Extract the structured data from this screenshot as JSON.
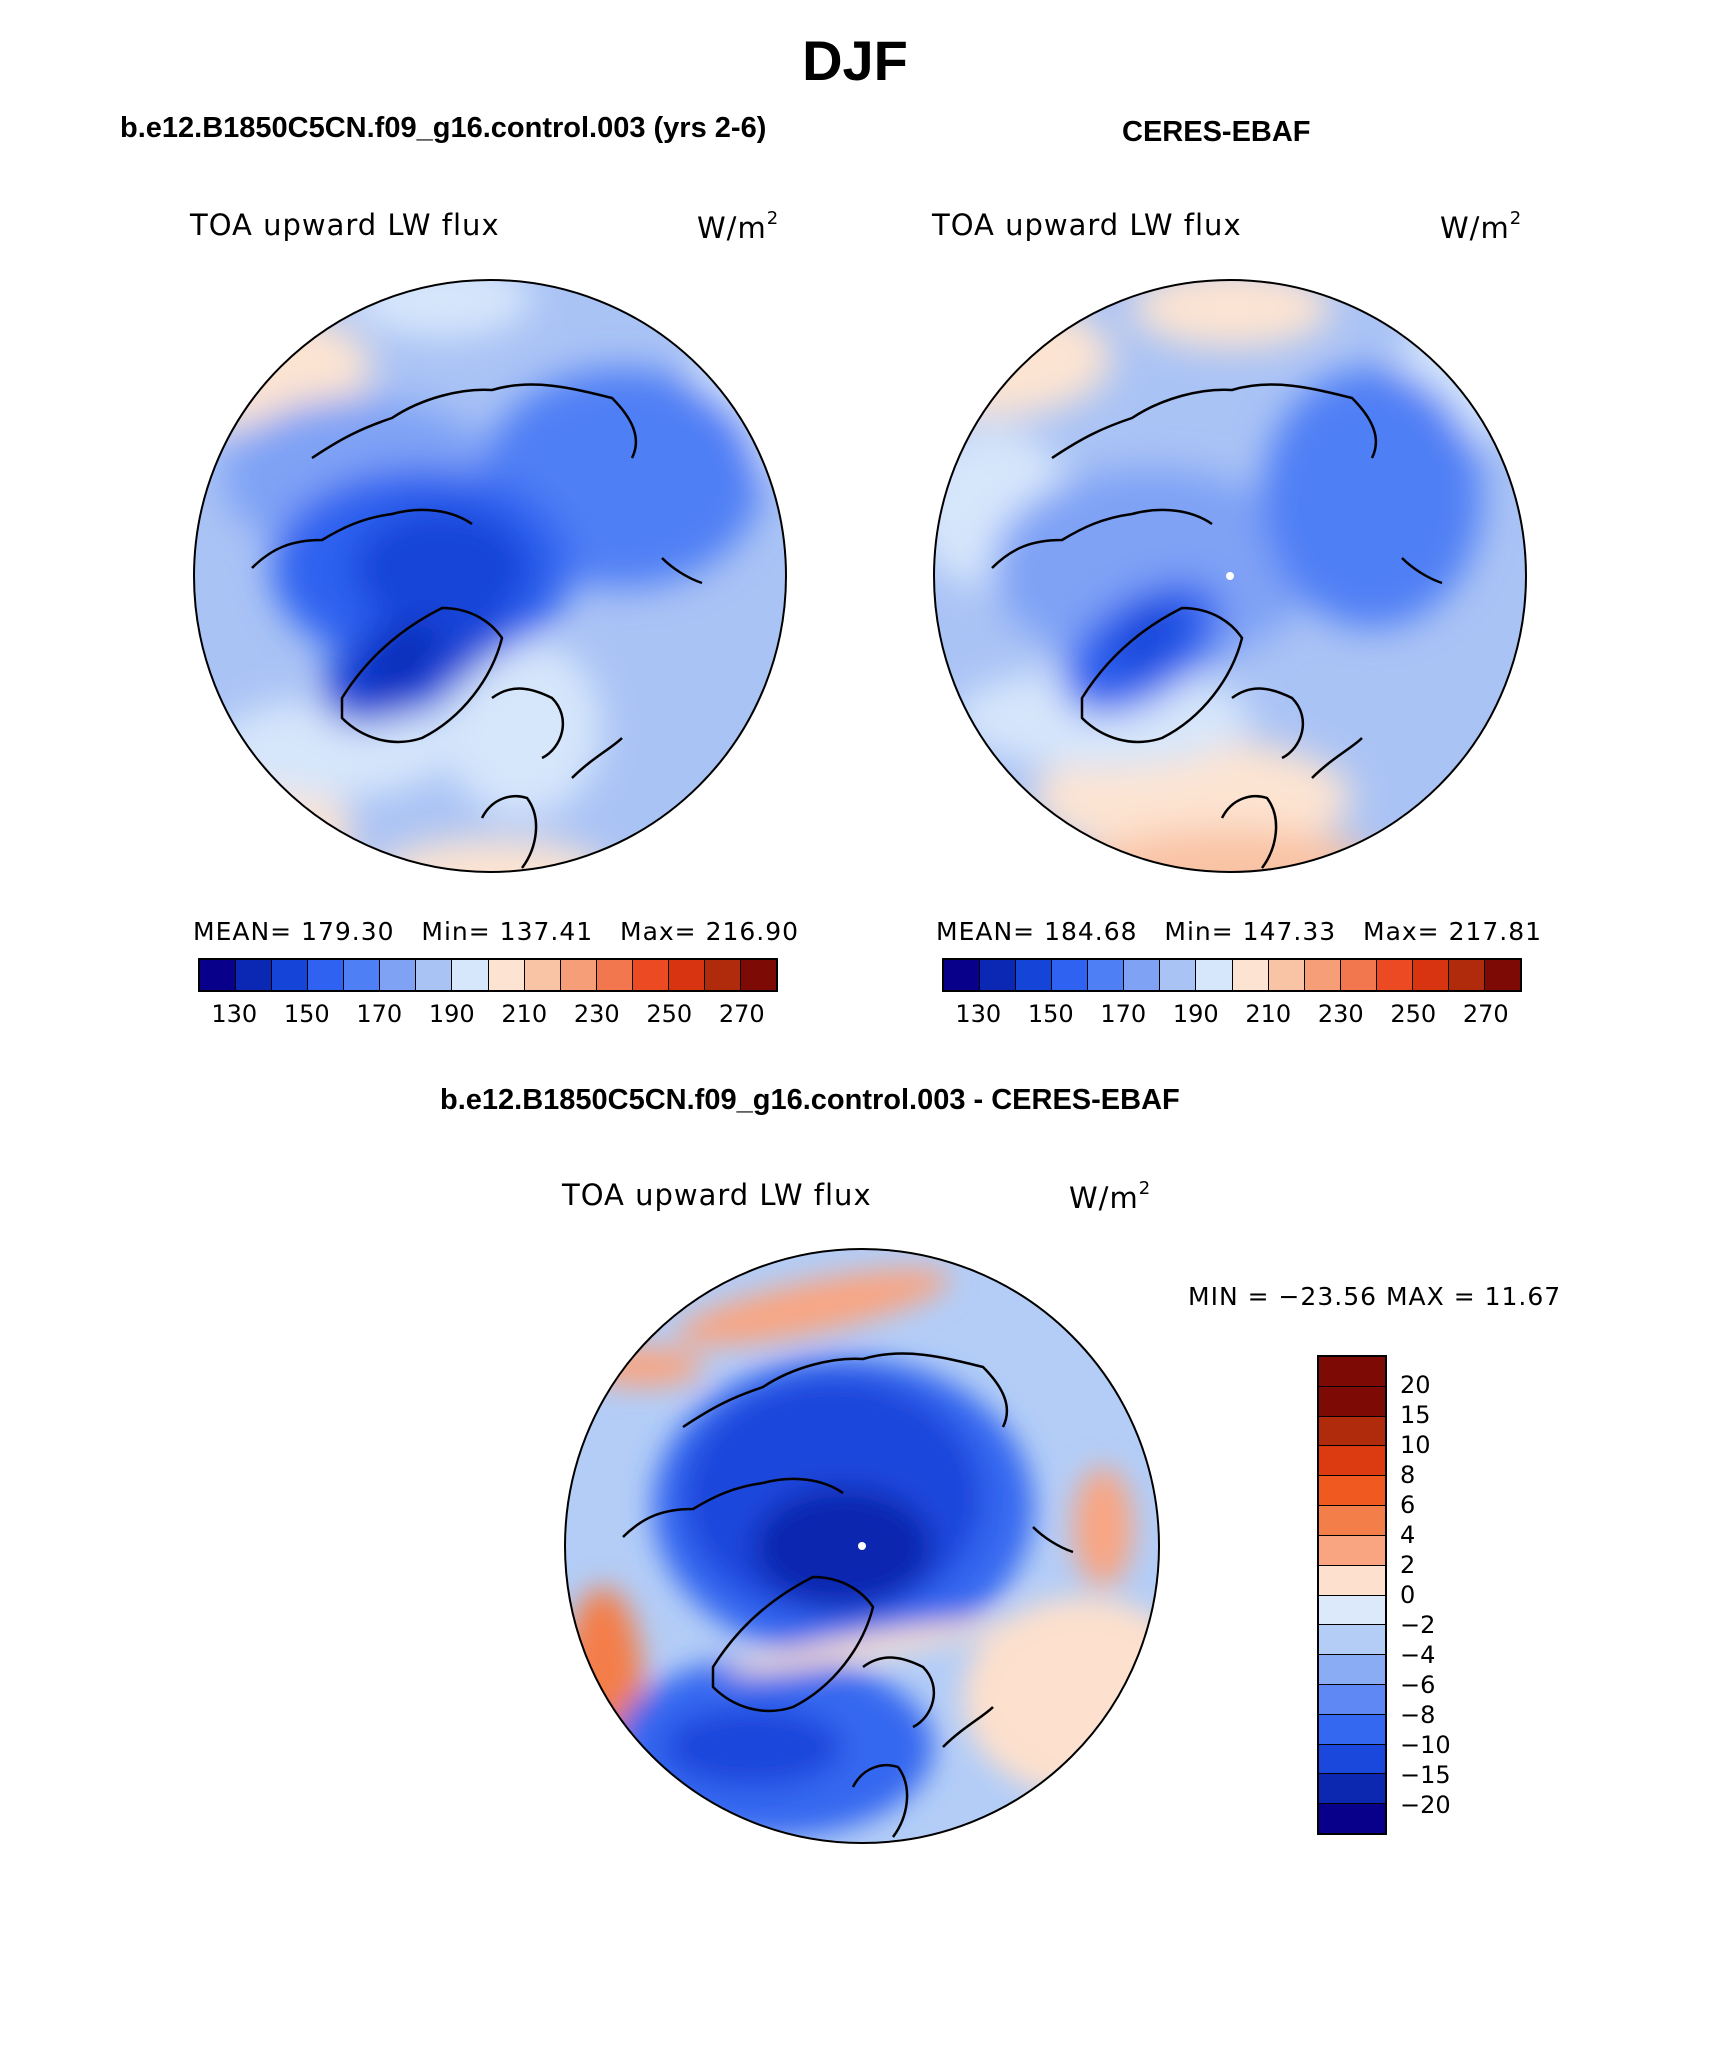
{
  "title": "DJF",
  "colors": {
    "abs_palette": [
      "#08008a",
      "#0b28b4",
      "#1545d8",
      "#2f62f0",
      "#4f7ff5",
      "#7fa2f5",
      "#aac3f5",
      "#d6e6fb",
      "#fde4d2",
      "#f9c3a5",
      "#f59e78",
      "#f2764e",
      "#ec4a22",
      "#d93412",
      "#b02a0c",
      "#7e0a06"
    ],
    "diff_palette": [
      "#7e0a06",
      "#b02a0c",
      "#dc3a10",
      "#f05a20",
      "#f47e4a",
      "#f9a582",
      "#fde0cd",
      "#dce9fb",
      "#b3cdf7",
      "#8aacf5",
      "#5f88f5",
      "#3568f0",
      "#1a47dc",
      "#0c28b0",
      "#08008a"
    ]
  },
  "panels": {
    "model": {
      "title": "b.e12.B1850C5CN.f09_g16.control.003 (yrs 2-6)",
      "variable": "TOA upward LW flux",
      "units": "W/m",
      "units_exp": "2",
      "mean_label": "MEAN=",
      "mean": "179.30",
      "min_label": "Min=",
      "min": "137.41",
      "max_label": "Max=",
      "max": "216.90",
      "colorbar_ticks": [
        "130",
        "150",
        "170",
        "190",
        "210",
        "230",
        "250",
        "270"
      ]
    },
    "obs": {
      "title": "CERES-EBAF",
      "variable": "TOA upward LW flux",
      "units": "W/m",
      "units_exp": "2",
      "mean_label": "MEAN=",
      "mean": "184.68",
      "min_label": "Min=",
      "min": "147.33",
      "max_label": "Max=",
      "max": "217.81",
      "colorbar_ticks": [
        "130",
        "150",
        "170",
        "190",
        "210",
        "230",
        "250",
        "270"
      ]
    },
    "diff": {
      "title": "b.e12.B1850C5CN.f09_g16.control.003 - CERES-EBAF",
      "variable": "TOA upward LW flux",
      "units": "W/m",
      "units_exp": "2",
      "minmax": "MIN = −23.56 MAX =  11.67",
      "colorbar_ticks": [
        "20",
        "15",
        "10",
        "8",
        "6",
        "4",
        "2",
        "0",
        "−2",
        "−4",
        "−6",
        "−8",
        "−10",
        "−15",
        "−20"
      ]
    }
  }
}
